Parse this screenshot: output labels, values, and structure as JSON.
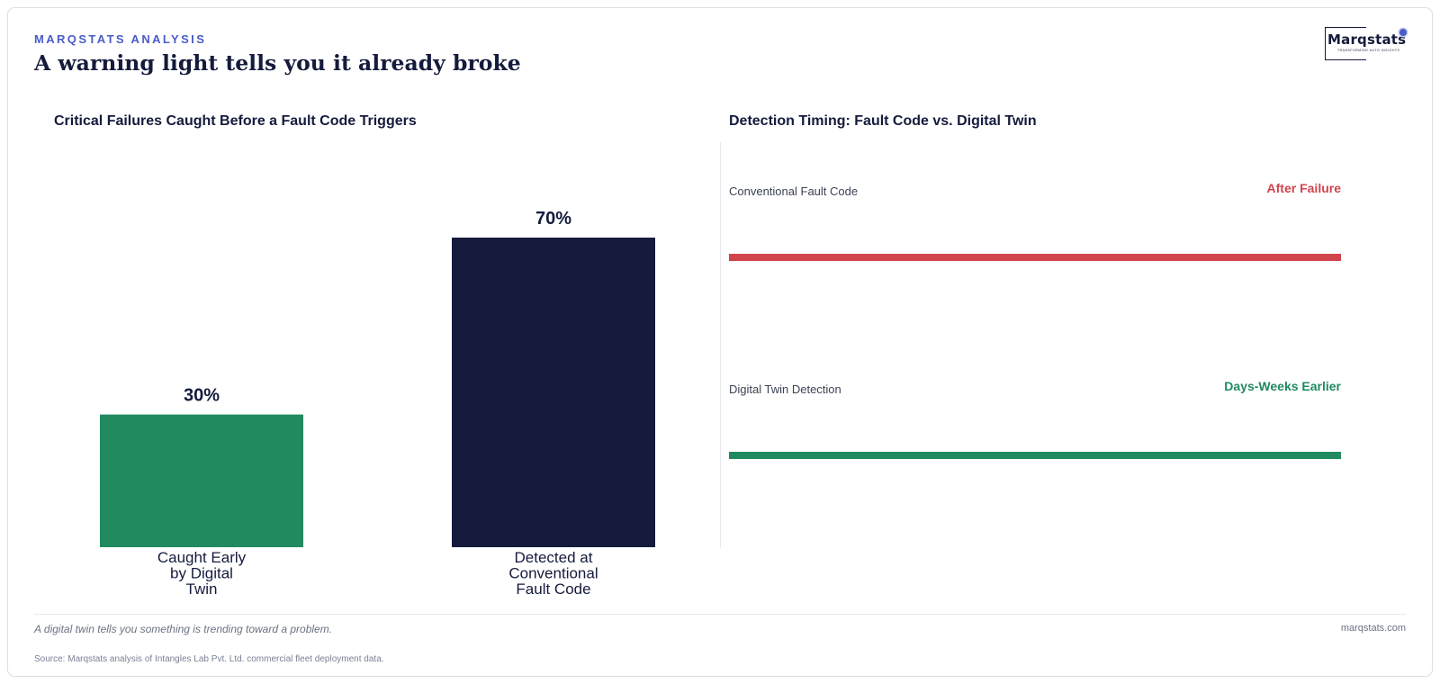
{
  "header": {
    "kicker": "MARQSTATS ANALYSIS",
    "headline": "A warning light tells you it already broke"
  },
  "logo": {
    "wordmark": "Marqstats",
    "tagline": "TRANSFORMING AUTO INSIGHTS"
  },
  "colors": {
    "navy": "#151b3c",
    "green": "#218a5f",
    "red": "#d2444c",
    "accent": "#4a5cc7"
  },
  "chart_data": [
    {
      "type": "bar",
      "title": "Critical Failures Caught Before a Fault Code Triggers",
      "categories": [
        [
          "Caught Early",
          "by Digital",
          "Twin"
        ],
        [
          "Detected at",
          "Conventional",
          "Fault Code"
        ]
      ],
      "values": [
        30,
        70
      ],
      "value_labels": [
        "30%",
        "70%"
      ],
      "colors": [
        "#218a5f",
        "#151b3c"
      ],
      "ylim": [
        0,
        100
      ],
      "grid": false
    },
    {
      "type": "table",
      "title": "Detection Timing: Fault Code vs. Digital Twin",
      "rows": [
        {
          "label": "Conventional Fault Code",
          "status": "After Failure",
          "color": "#d2444c"
        },
        {
          "label": "Digital Twin Detection",
          "status": "Days-Weeks Earlier",
          "color": "#218a5f"
        }
      ]
    }
  ],
  "footer": {
    "note": "A digital twin tells you something is trending toward a problem.",
    "site": "marqstats.com",
    "source": "Source: Marqstats analysis of Intangles Lab Pvt. Ltd. commercial fleet deployment data."
  }
}
